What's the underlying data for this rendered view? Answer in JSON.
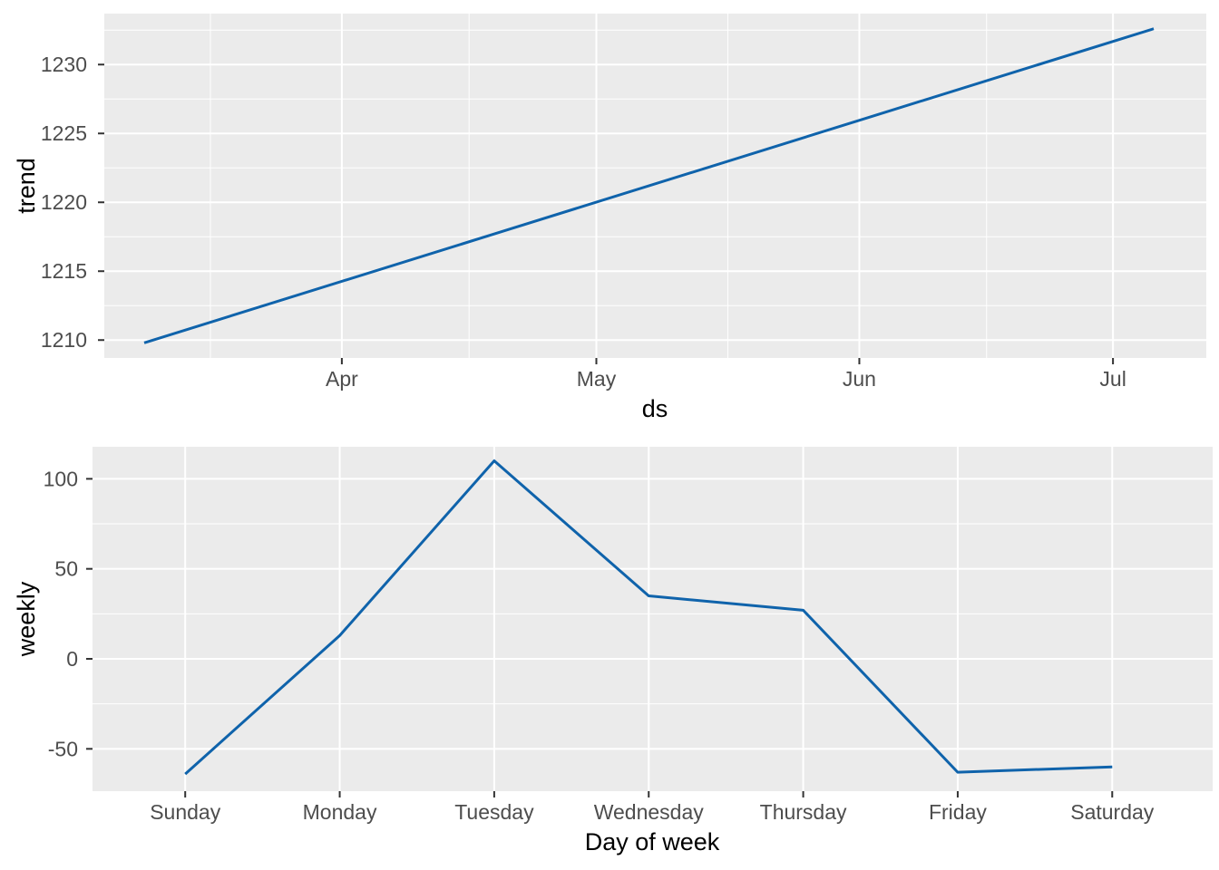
{
  "figure": {
    "background_color": "#ffffff",
    "panel_color": "#ebebeb",
    "grid_color": "#ffffff",
    "tick_mark_color": "#333333",
    "tick_label_color": "#4d4d4d",
    "axis_title_color": "#000000",
    "line_color": "#0f63ab"
  },
  "chart_data": [
    {
      "id": "trend",
      "type": "line",
      "title": "",
      "xlabel": "ds",
      "ylabel": "trend",
      "x_axis": {
        "lim": [
          -4.7,
          125.2
        ],
        "major_ticks": [
          {
            "pos": 23.3,
            "label": "Apr"
          },
          {
            "pos": 53.3,
            "label": "May"
          },
          {
            "pos": 84.3,
            "label": "Jun"
          },
          {
            "pos": 114.2,
            "label": "Jul"
          }
        ],
        "minor_ticks": [
          7.8,
          38.3,
          68.8,
          99.3
        ]
      },
      "y_axis": {
        "lim": [
          1208.7,
          1233.7
        ],
        "major_ticks": [
          {
            "pos": 1210,
            "label": "1210"
          },
          {
            "pos": 1215,
            "label": "1215"
          },
          {
            "pos": 1220,
            "label": "1220"
          },
          {
            "pos": 1225,
            "label": "1225"
          },
          {
            "pos": 1230,
            "label": "1230"
          }
        ],
        "minor_ticks": [
          1212.5,
          1217.5,
          1222.5,
          1227.5,
          1232.5
        ]
      },
      "series": [
        {
          "name": "trend",
          "x": [
            0,
            119
          ],
          "y": [
            1209.8,
            1232.6
          ]
        }
      ],
      "grid": "on",
      "legend": "none"
    },
    {
      "id": "weekly",
      "type": "line",
      "title": "",
      "xlabel": "Day of week",
      "ylabel": "weekly",
      "x_axis": {
        "lim": [
          -0.6,
          6.65
        ],
        "major_ticks": [
          {
            "pos": 0,
            "label": "Sunday"
          },
          {
            "pos": 1,
            "label": "Monday"
          },
          {
            "pos": 2,
            "label": "Tuesday"
          },
          {
            "pos": 3,
            "label": "Wednesday"
          },
          {
            "pos": 4,
            "label": "Thursday"
          },
          {
            "pos": 5,
            "label": "Friday"
          },
          {
            "pos": 6,
            "label": "Saturday"
          }
        ],
        "minor_ticks": []
      },
      "y_axis": {
        "lim": [
          -73.5,
          117.8
        ],
        "major_ticks": [
          {
            "pos": -50,
            "label": "-50"
          },
          {
            "pos": 0,
            "label": "0"
          },
          {
            "pos": 50,
            "label": "50"
          },
          {
            "pos": 100,
            "label": "100"
          }
        ],
        "minor_ticks": [
          -25,
          25,
          75
        ]
      },
      "series": [
        {
          "name": "weekly",
          "x": [
            0,
            1,
            2,
            3,
            4,
            5,
            6
          ],
          "y": [
            -64,
            13,
            110,
            35,
            27,
            -63,
            -60
          ]
        }
      ],
      "grid": "on",
      "legend": "none"
    }
  ]
}
